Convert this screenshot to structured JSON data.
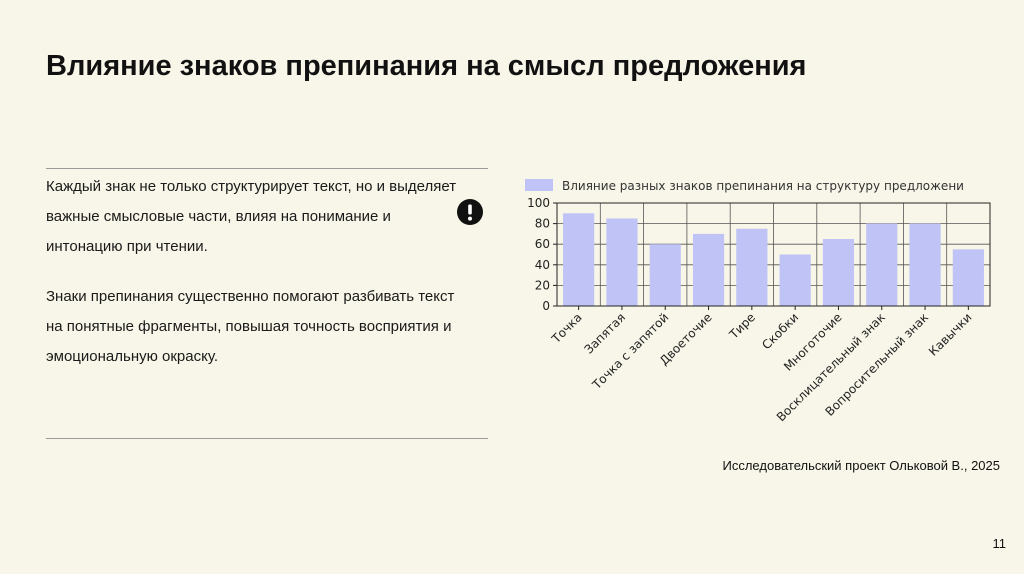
{
  "slide": {
    "title": "Влияние знаков препинания на смысл предложения",
    "paragraph_1": "Каждый знак не только структурирует текст, но и выделяет важные смысловые части, влияя на понимание и интонацию при чтении.",
    "paragraph_2": "Знаки препинания существенно помогают разбивать текст на понятные фрагменты, повышая точность восприятия и эмоциональную окраску.",
    "icon": "exclamation-circle-icon",
    "credit": "Исследовательский проект Ольковой В., 2025",
    "page_number": "11"
  },
  "colors": {
    "background": "#f8f6e8",
    "bar": "#bfc3f5",
    "icon": "#111111"
  },
  "chart_data": {
    "type": "bar",
    "legend": "Влияние разных знаков препинания на структуру предложени",
    "categories": [
      "Точка",
      "Запятая",
      "Точка с запятой",
      "Двоеточие",
      "Тире",
      "Скобки",
      "Многоточие",
      "Восклицательный знак",
      "Вопросительный знак",
      "Кавычки"
    ],
    "values": [
      90,
      85,
      60,
      70,
      75,
      50,
      65,
      80,
      80,
      55
    ],
    "yticks": [
      "0",
      "20",
      "40",
      "60",
      "80",
      "100"
    ],
    "ylim": [
      0,
      100
    ],
    "grid": true,
    "legend_position": "top"
  }
}
